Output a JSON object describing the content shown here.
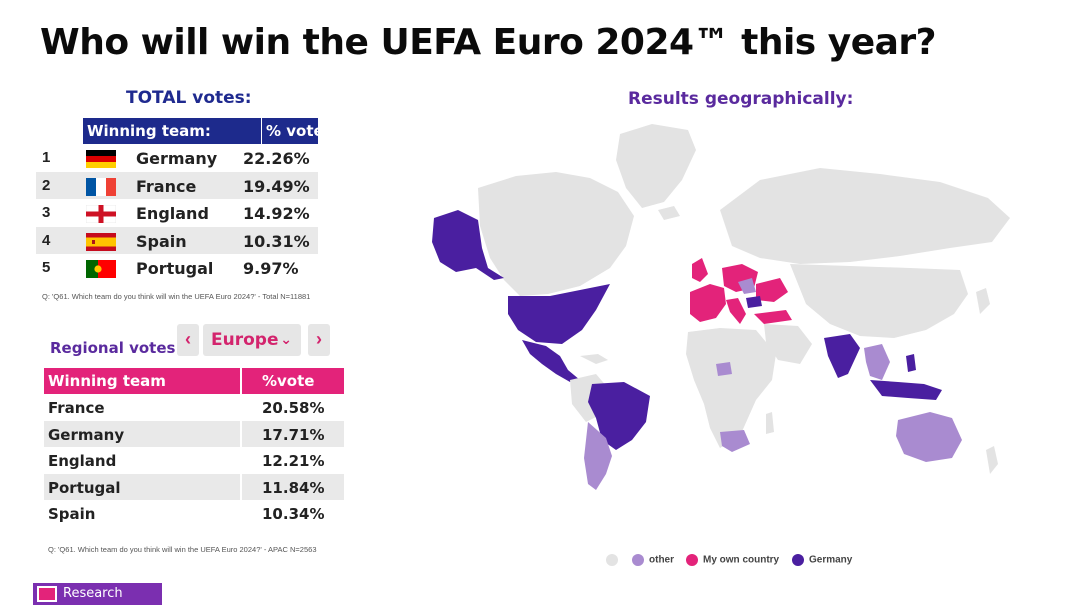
{
  "title": "Who will win the UEFA Euro 2024™ this year?",
  "total": {
    "heading": "TOTAL votes:",
    "col_team": "Winning team:",
    "col_pct": "% votes:",
    "rows": [
      {
        "rank": "1",
        "team": "Germany",
        "pct": "22.26%",
        "flag": "flag-germany"
      },
      {
        "rank": "2",
        "team": "France",
        "pct": "19.49%",
        "flag": "flag-france"
      },
      {
        "rank": "3",
        "team": "England",
        "pct": "14.92%",
        "flag": "flag-england"
      },
      {
        "rank": "4",
        "team": "Spain",
        "pct": "10.31%",
        "flag": "flag-spain"
      },
      {
        "rank": "5",
        "team": "Portugal",
        "pct": "9.97%",
        "flag": "flag-portugal"
      }
    ],
    "note": "Q: 'Q61. Which team do you think will win the UEFA Euro 2024?' - Total N=11881"
  },
  "regional": {
    "label": "Regional votes:",
    "prev": "‹",
    "next": "›",
    "region": "Europe",
    "chevron": "⌄",
    "col_team": "Winning team",
    "col_pct": "%vote",
    "rows": [
      {
        "team": "France",
        "pct": "20.58%"
      },
      {
        "team": "Germany",
        "pct": "17.71%"
      },
      {
        "team": "England",
        "pct": "12.21%"
      },
      {
        "team": "Portugal",
        "pct": "11.84%"
      },
      {
        "team": "Spain",
        "pct": "10.34%"
      }
    ],
    "note": "Q: 'Q61. Which team do you think will win the UEFA Euro 2024?' - APAC N=2563"
  },
  "map": {
    "heading": "Results geographically:",
    "legend": [
      {
        "label": "",
        "color": "#e3e3e3"
      },
      {
        "label": "other",
        "color": "#a98bd0"
      },
      {
        "label": "My own country",
        "color": "#e3237a"
      },
      {
        "label": "Germany",
        "color": "#4a1fa0"
      }
    ]
  },
  "colors": {
    "navy": "#1d2a8c",
    "pink": "#e3237a",
    "purple": "#5a2a9e",
    "germany": "#4a1fa0",
    "own_country": "#e3237a",
    "other": "#a98bd0",
    "no_data": "#e3e3e3"
  },
  "brand": {
    "label": "Research"
  },
  "chart_data": [
    {
      "type": "table",
      "title": "TOTAL votes:",
      "columns": [
        "Winning team:",
        "% votes:"
      ],
      "categories": [
        "Germany",
        "France",
        "England",
        "Spain",
        "Portugal"
      ],
      "values": [
        22.26,
        19.49,
        14.92,
        10.31,
        9.97
      ]
    },
    {
      "type": "table",
      "title": "Regional votes:",
      "region": "Europe",
      "columns": [
        "Winning team",
        "%vote"
      ],
      "categories": [
        "France",
        "Germany",
        "England",
        "Portugal",
        "Spain"
      ],
      "values": [
        20.58,
        17.71,
        12.21,
        11.84,
        10.34
      ]
    }
  ]
}
